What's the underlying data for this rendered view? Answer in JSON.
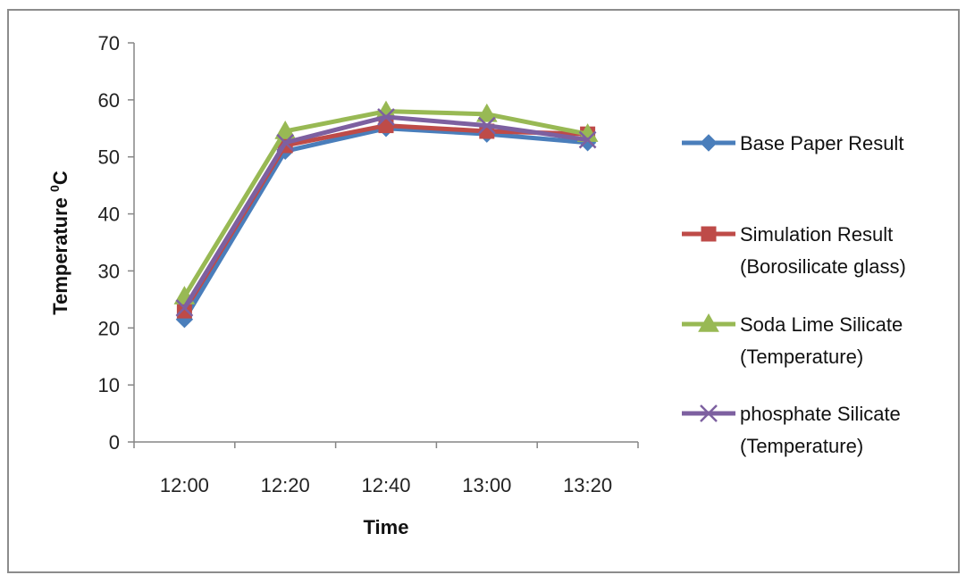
{
  "chart_data": {
    "type": "line",
    "xlabel": "Time",
    "ylabel": "Temperature ",
    "ylabel_sup": "0",
    "ylabel_unit": "C",
    "categories": [
      "12:00",
      "12:20",
      "12:40",
      "13:00",
      "13:20"
    ],
    "ylim": [
      0,
      70
    ],
    "yticks": [
      0,
      10,
      20,
      30,
      40,
      50,
      60,
      70
    ],
    "grid": false,
    "legend_position": "right",
    "series": [
      {
        "name_lines": [
          "Base Paper Result"
        ],
        "values": [
          21.5,
          51,
          55,
          54,
          52.5
        ],
        "color": "#4a7ebb",
        "marker": "diamond"
      },
      {
        "name_lines": [
          "Simulation Result",
          "(Borosilicate glass)"
        ],
        "values": [
          23,
          52,
          55.5,
          54.5,
          54
        ],
        "color": "#be4b48",
        "marker": "square"
      },
      {
        "name_lines": [
          "Soda Lime Silicate",
          "(Temperature)"
        ],
        "values": [
          25.5,
          54.5,
          58,
          57.5,
          54
        ],
        "color": "#98b954",
        "marker": "triangle"
      },
      {
        "name_lines": [
          "phosphate Silicate",
          "(Temperature)"
        ],
        "values": [
          23.5,
          52.5,
          57,
          55.5,
          53
        ],
        "color": "#7d60a0",
        "marker": "x"
      }
    ]
  }
}
